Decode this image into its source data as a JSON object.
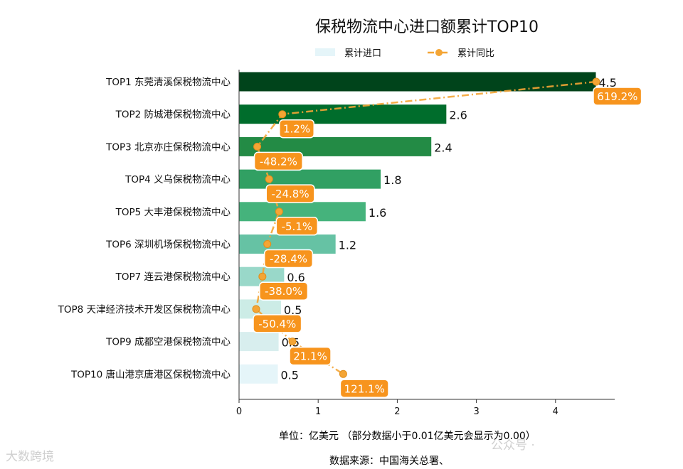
{
  "chart_data": {
    "type": "bar",
    "orientation": "horizontal",
    "title": "保税物流中心进口额累计TOP10",
    "categories": [
      "TOP1 东莞清溪保税物流中心",
      "TOP2 防城港保税物流中心",
      "TOP3 北京亦庄保税物流中心",
      "TOP4 义乌保税物流中心",
      "TOP5 大丰港保税物流中心",
      "TOP6 深圳机场保税物流中心",
      "TOP7 连云港保税物流中心",
      "TOP8 天津经济技术开发区保税物流中心",
      "TOP9 成都空港保税物流中心",
      "TOP10 唐山港京唐港区保税物流中心"
    ],
    "series": [
      {
        "name": "累计进口",
        "type": "bar",
        "values": [
          4.51,
          2.62,
          2.43,
          1.79,
          1.6,
          1.22,
          0.57,
          0.53,
          0.5,
          0.49
        ],
        "labels": [
          "4.5",
          "2.6",
          "2.4",
          "1.8",
          "1.6",
          "1.2",
          "0.6",
          "0.5",
          "0.5",
          "0.5"
        ],
        "colors": [
          "#00441b",
          "#006d2c",
          "#238b45",
          "#31a063",
          "#45b37c",
          "#66c2a4",
          "#99d8c9",
          "#ccece6",
          "#d8eeee",
          "#e5f5f9"
        ]
      },
      {
        "name": "累计同比",
        "type": "line",
        "values": [
          619.2,
          1.2,
          -48.2,
          -24.8,
          -5.1,
          -28.4,
          -38.0,
          -50.4,
          21.1,
          121.1
        ],
        "labels": [
          "619.2%",
          "1.2%",
          "-48.2%",
          "-24.8%",
          "-5.1%",
          "-28.4%",
          "-38.0%",
          "-50.4%",
          "21.1%",
          "121.1%"
        ],
        "color": "#f4a535",
        "label_color": "#f7941d"
      }
    ],
    "x_ticks": [
      "0",
      "1",
      "2",
      "3",
      "4"
    ],
    "xlim": [
      0,
      4.75
    ],
    "legend_position": "top-center",
    "grid": false
  },
  "axis_note": "单位：亿美元 （部分数据小于0.01亿美元会显示为0.00）",
  "source_note": "数据来源：中国海关总署、",
  "watermarks": {
    "left": "大数跨境",
    "right": "公众号 ·"
  }
}
